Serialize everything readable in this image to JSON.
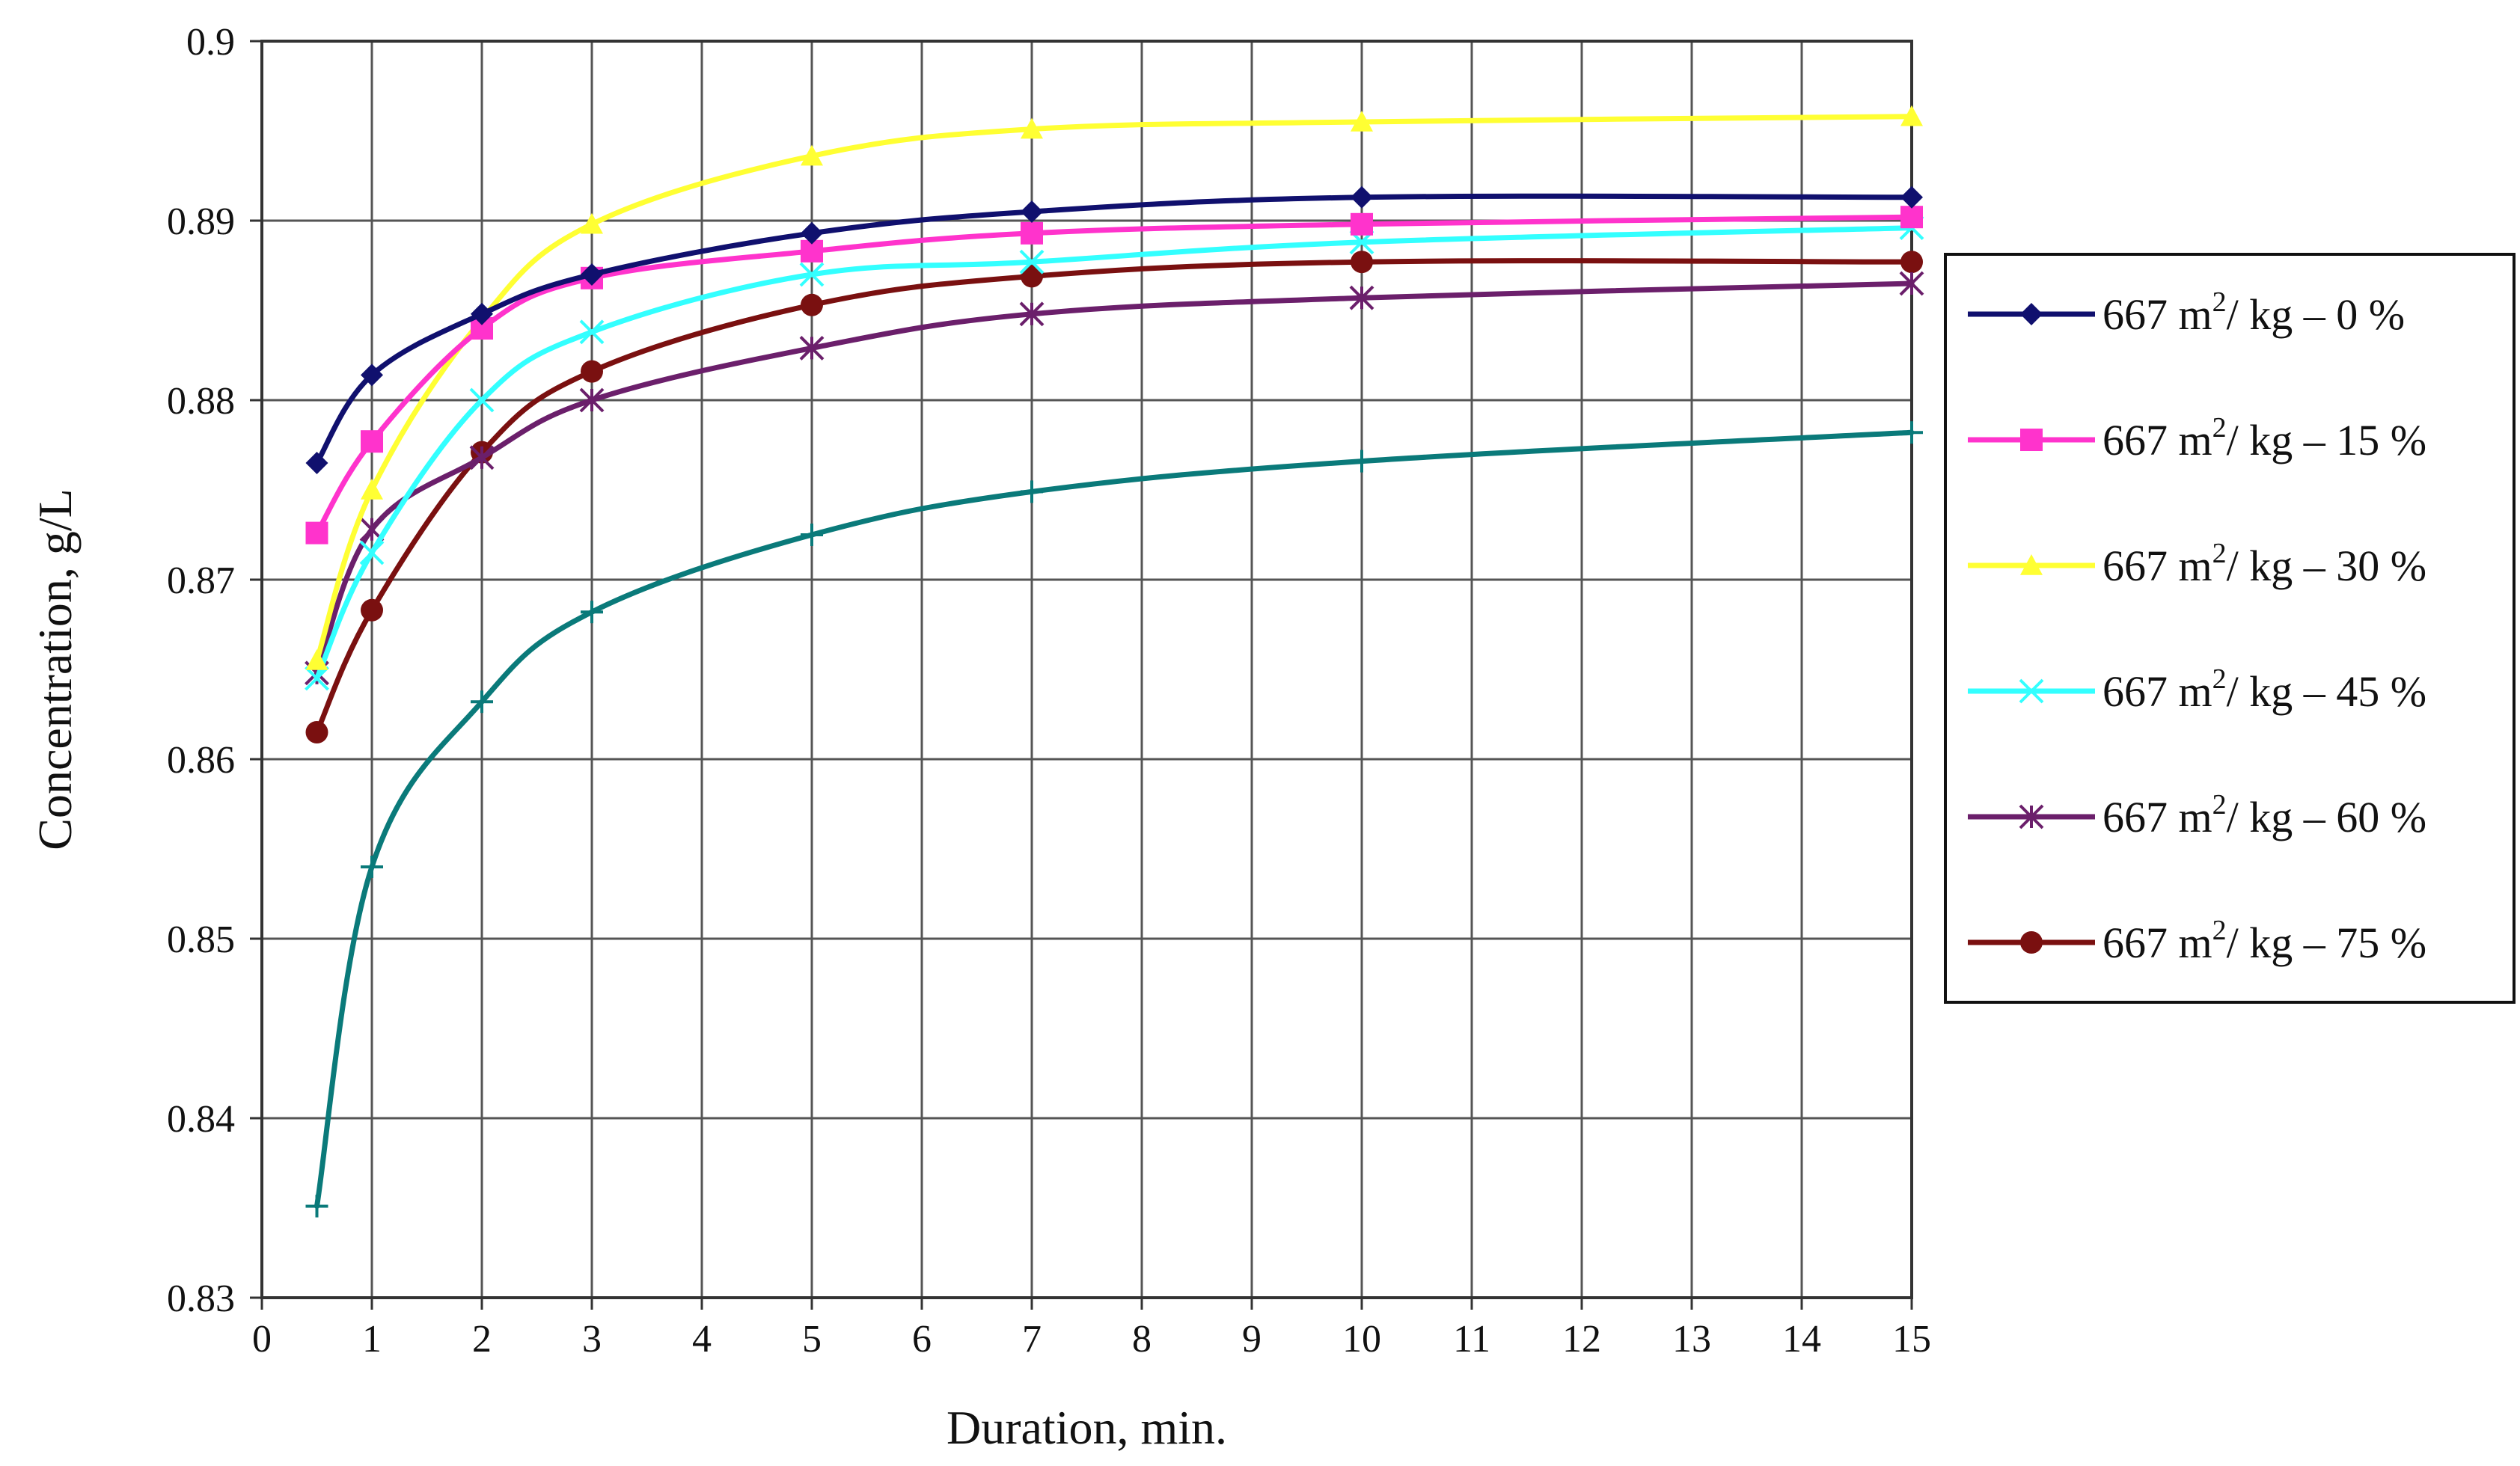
{
  "chart_data": {
    "type": "line",
    "title": "",
    "xlabel": "Duration, min.",
    "ylabel": "Concentration, g/L",
    "xlim": [
      0,
      15
    ],
    "ylim": [
      0.83,
      0.9
    ],
    "x_ticks": [
      "0",
      "1",
      "2",
      "3",
      "4",
      "5",
      "6",
      "7",
      "8",
      "9",
      "10",
      "11",
      "12",
      "13",
      "14",
      "15"
    ],
    "y_ticks": [
      "0.83",
      "0.84",
      "0.85",
      "0.86",
      "0.87",
      "0.88",
      "0.89",
      "0.9"
    ],
    "grid": true,
    "legend_position": "right",
    "x": [
      0.5,
      1,
      2,
      3,
      5,
      7,
      10,
      15
    ],
    "series": [
      {
        "name": "667 m2/ kg – 0 %",
        "name_prefix": "667 m",
        "name_sup": "2",
        "name_suffix": "/ kg – 0 %",
        "color": "#10106e",
        "marker": "diamond",
        "values": [
          0.8765,
          0.8814,
          0.8848,
          0.887,
          0.8893,
          0.8905,
          0.8913,
          0.8913
        ]
      },
      {
        "name": "667 m2/ kg – 15 %",
        "name_prefix": "667 m",
        "name_sup": "2",
        "name_suffix": "/ kg – 15 %",
        "color": "#ff33cc",
        "marker": "square",
        "values": [
          0.8726,
          0.8777,
          0.884,
          0.8868,
          0.8883,
          0.8893,
          0.8898,
          0.8902
        ]
      },
      {
        "name": "667 m2/ kg – 30 %",
        "name_prefix": "667 m",
        "name_sup": "2",
        "name_suffix": "/ kg – 30 %",
        "color": "#ffff33",
        "marker": "triangle",
        "values": [
          0.8655,
          0.875,
          0.8845,
          0.8898,
          0.8936,
          0.8951,
          0.8955,
          0.8958
        ]
      },
      {
        "name": "667 m2/ kg – 45 %",
        "name_prefix": "667 m",
        "name_sup": "2",
        "name_suffix": "/ kg – 45 %",
        "color": "#33ffff",
        "marker": "x",
        "values": [
          0.8645,
          0.8715,
          0.88,
          0.8838,
          0.887,
          0.8877,
          0.8888,
          0.8896
        ]
      },
      {
        "name": "667 m2/ kg – 60 %",
        "name_prefix": "667 m",
        "name_sup": "2",
        "name_suffix": "/ kg – 60 %",
        "color": "#6b1f6b",
        "marker": "star",
        "values": [
          0.8648,
          0.8728,
          0.8768,
          0.88,
          0.8829,
          0.8848,
          0.8857,
          0.8865
        ]
      },
      {
        "name": "667 m2/ kg – 75 %",
        "name_prefix": "667 m",
        "name_sup": "2",
        "name_suffix": "/ kg – 75 %",
        "color": "#7a1010",
        "marker": "circle",
        "values": [
          0.8615,
          0.8683,
          0.8771,
          0.8816,
          0.8853,
          0.8869,
          0.8877,
          0.8877
        ]
      },
      {
        "color": "#0a7a7a",
        "marker": "plus",
        "values": [
          0.8351,
          0.854,
          0.8632,
          0.8682,
          0.8725,
          0.8749,
          0.8766,
          0.8782
        ]
      }
    ]
  }
}
